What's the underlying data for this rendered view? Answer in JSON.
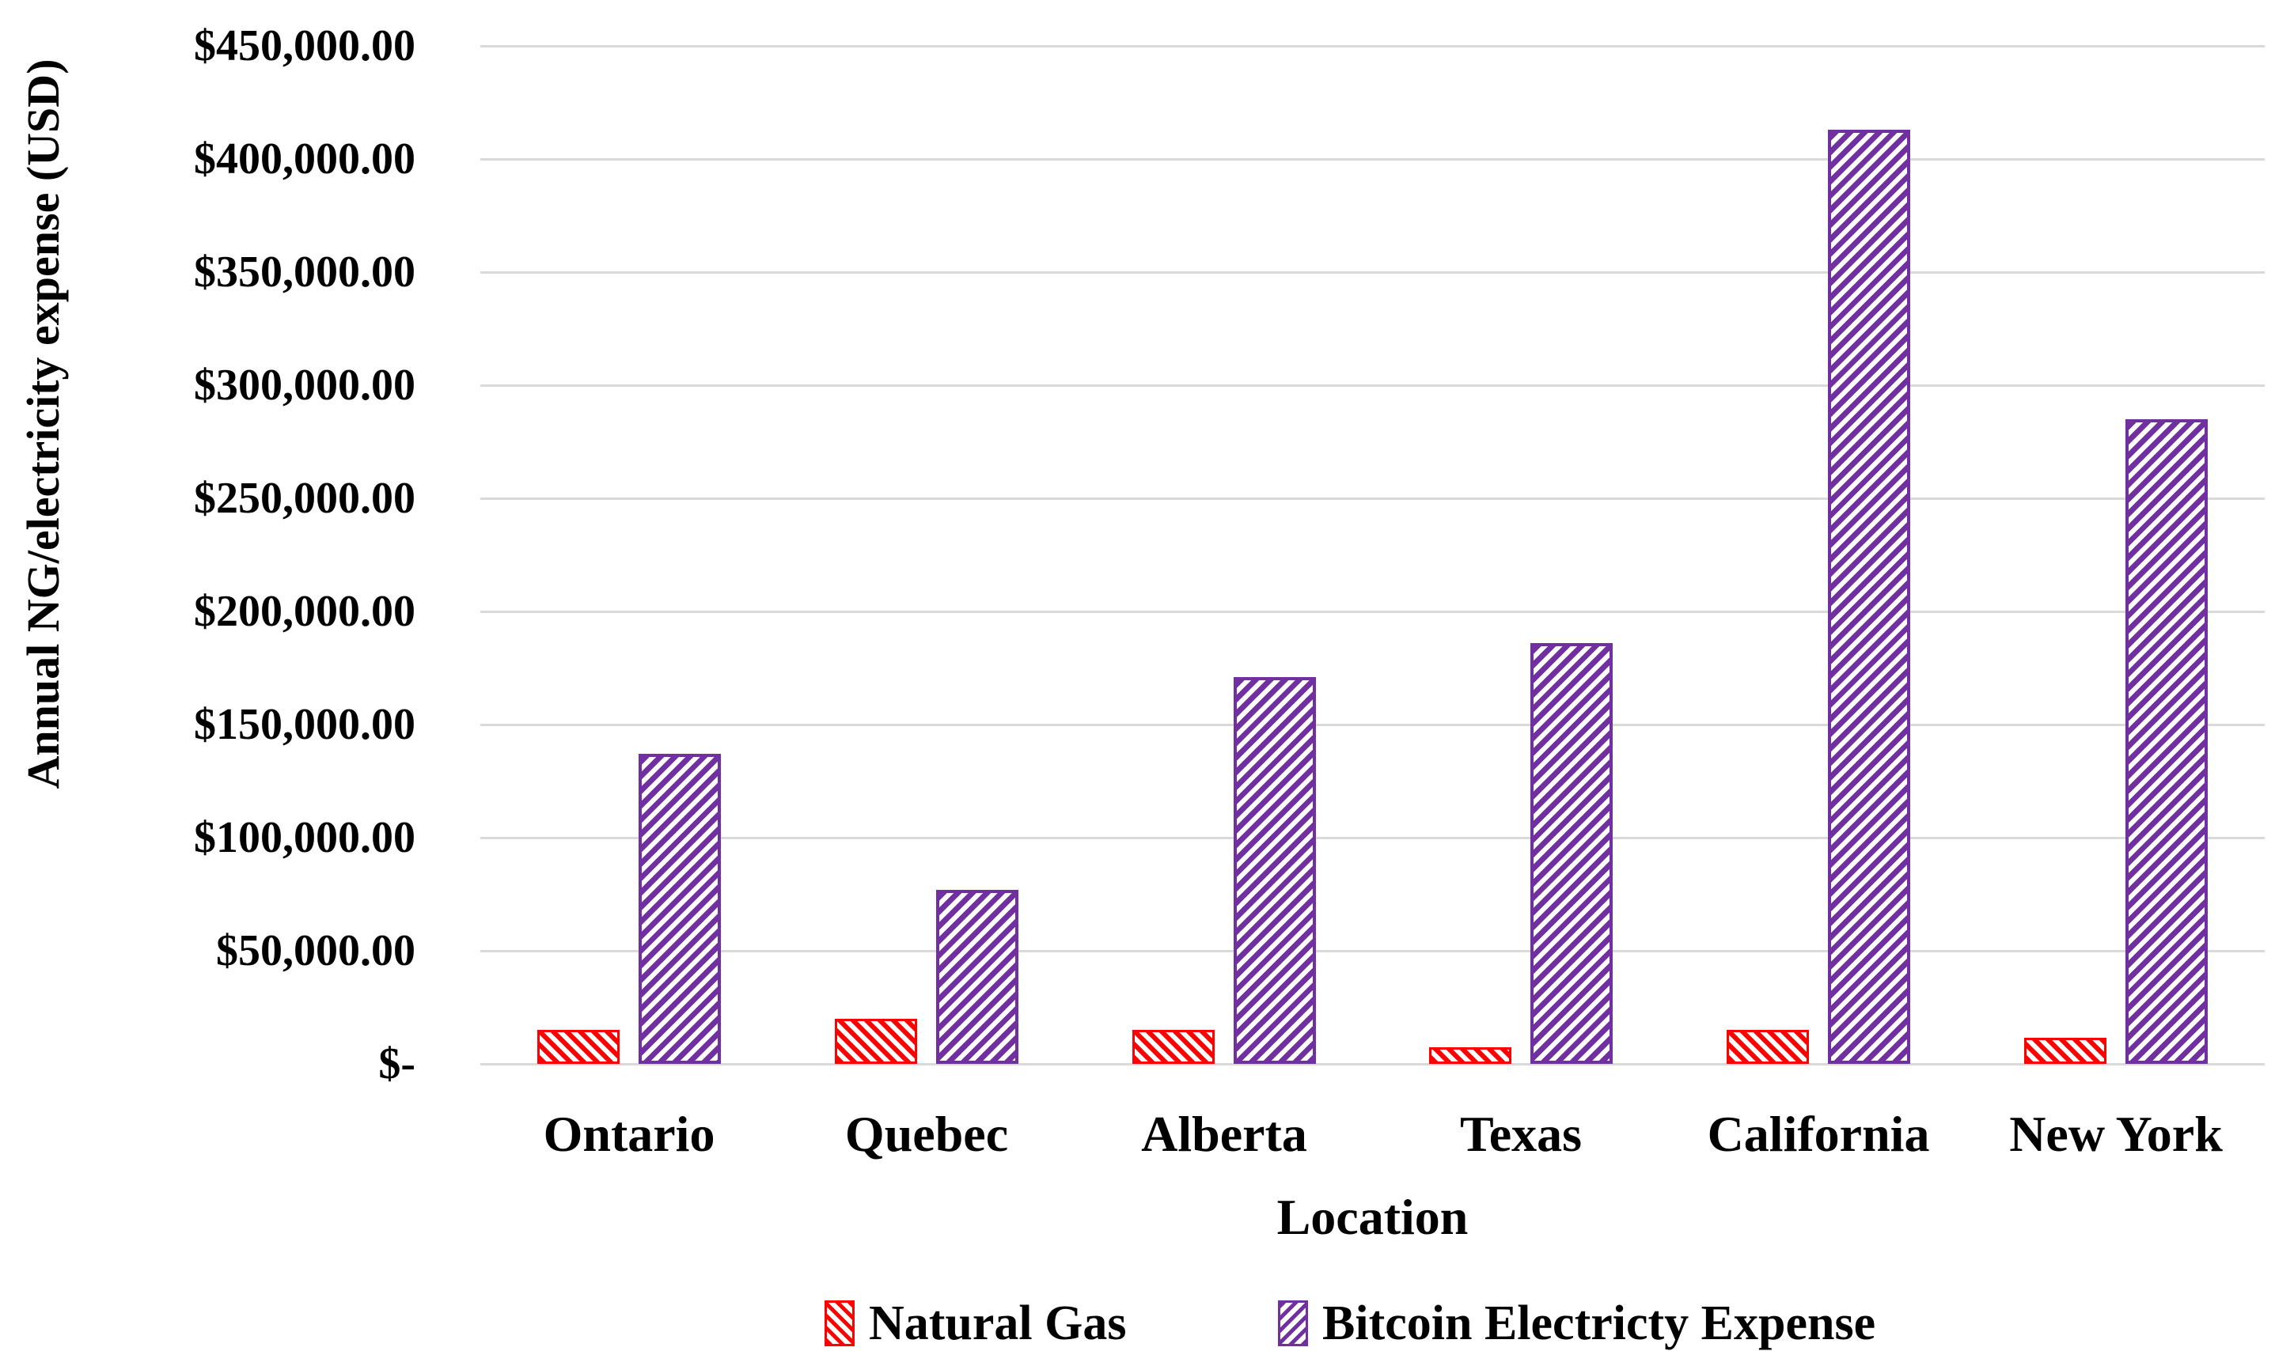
{
  "chart_data": {
    "type": "bar",
    "title": "",
    "xlabel": "Location",
    "ylabel": "Annual NG/electricity expense (USD)",
    "categories": [
      "Ontario",
      "Quebec",
      "Alberta",
      "Texas",
      "California",
      "New York"
    ],
    "series": [
      {
        "name": "Natural Gas",
        "color": "#ff0000",
        "hatch_direction": "backslash",
        "values": [
          15000,
          20000,
          15000,
          7500,
          15000,
          11500
        ]
      },
      {
        "name": "Bitcoin Electricty Expense",
        "color": "#7030a0",
        "hatch_direction": "slash",
        "values": [
          137000,
          77000,
          171000,
          186000,
          413000,
          285000
        ]
      }
    ],
    "ylim": [
      0,
      450000
    ],
    "ytick_step": 50000,
    "ytick_labels": [
      "$-",
      "$50,000.00",
      "$100,000.00",
      "$150,000.00",
      "$200,000.00",
      "$250,000.00",
      "$300,000.00",
      "$350,000.00",
      "$400,000.00",
      "$450,000.00"
    ],
    "grid": true,
    "grid_color": "#d9d9d9",
    "legend_position": "bottom"
  }
}
